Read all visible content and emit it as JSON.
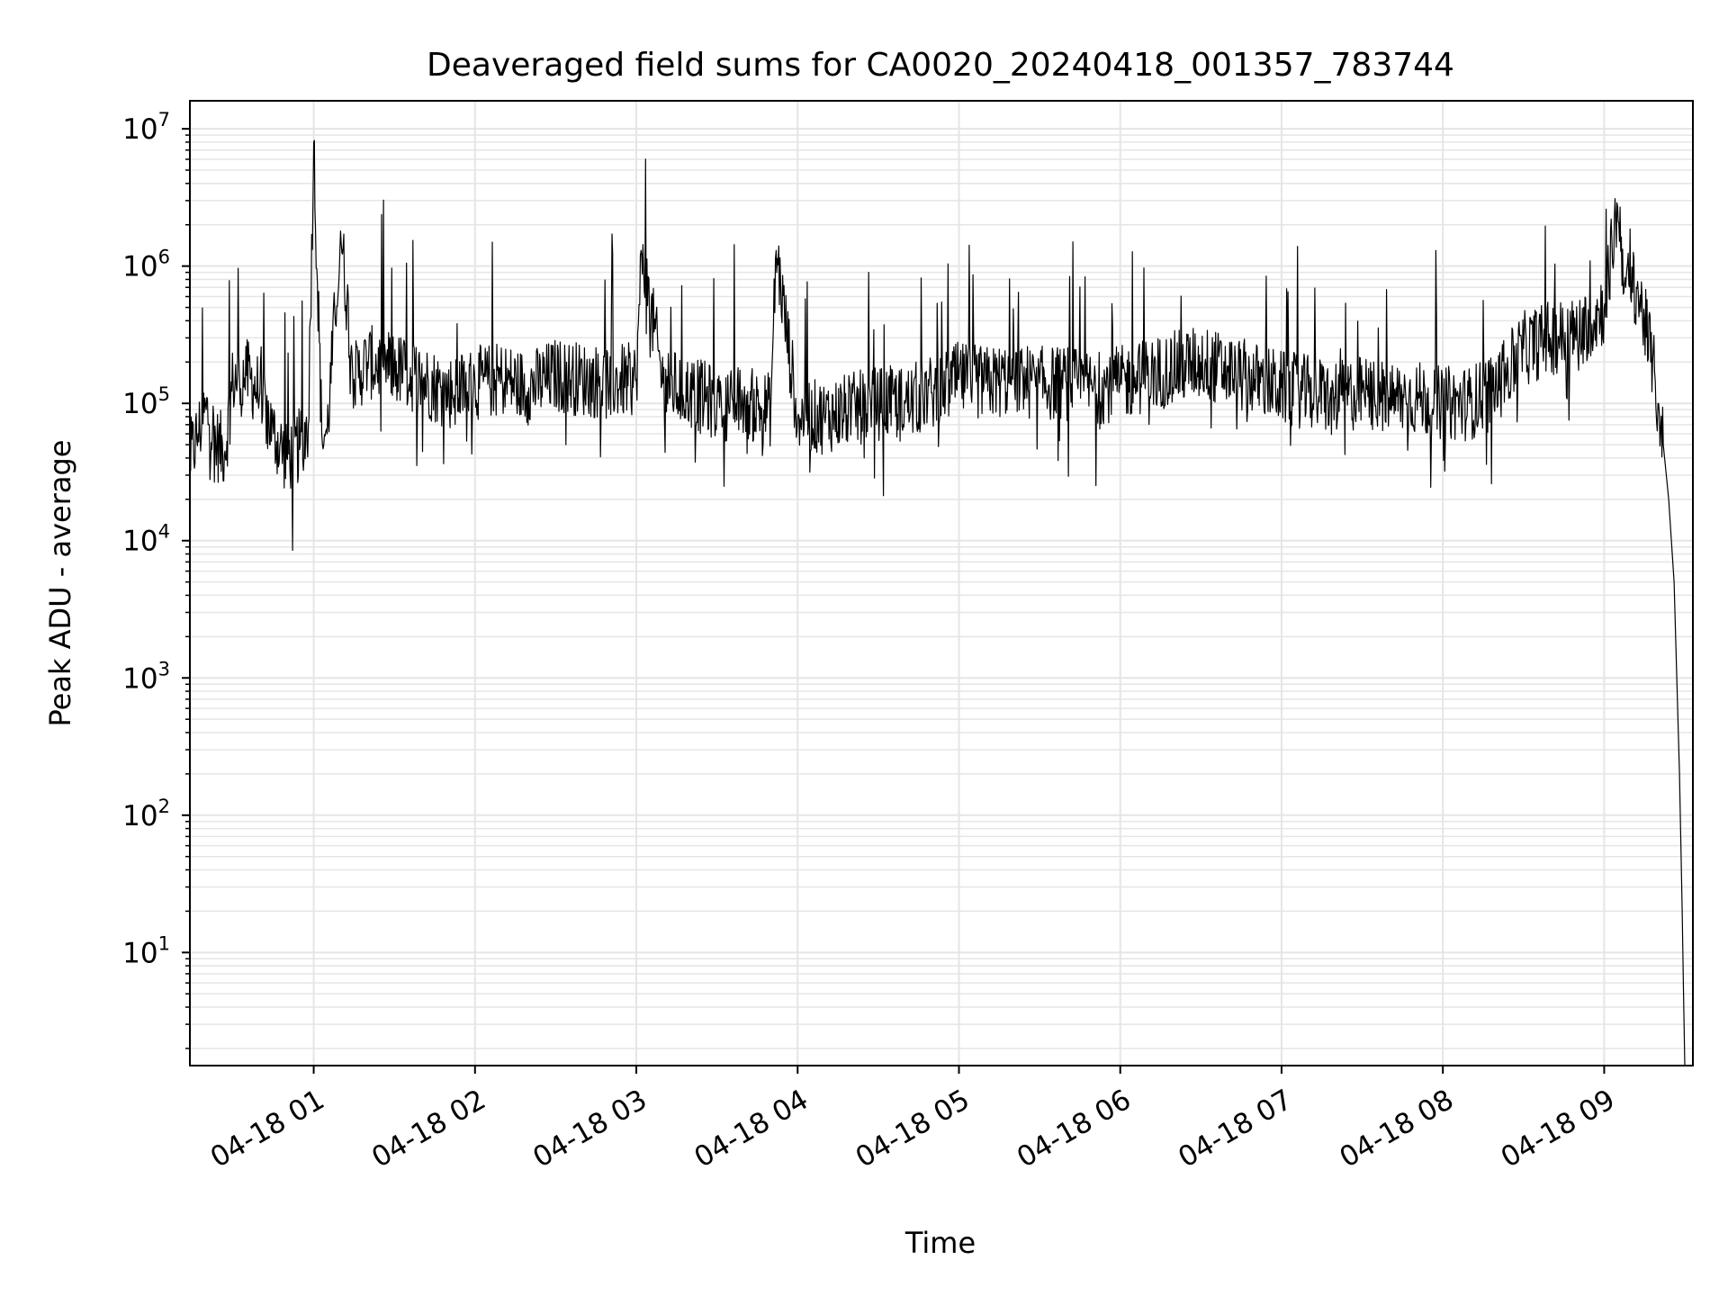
{
  "chart_data": {
    "type": "line",
    "title": "Deaveraged field sums for CA0020_20240418_001357_783744",
    "xlabel": "Time",
    "ylabel": "Peak ADU - average",
    "x_scale": "time",
    "y_scale": "log",
    "xlim": [
      "2024-04-18 00:13:57",
      "2024-04-18 09:33:00"
    ],
    "ylim": [
      1.5,
      16000000
    ],
    "x_ticks": [
      {
        "value": "2024-04-18 01:00",
        "label": "04-18 01"
      },
      {
        "value": "2024-04-18 02:00",
        "label": "04-18 02"
      },
      {
        "value": "2024-04-18 03:00",
        "label": "04-18 03"
      },
      {
        "value": "2024-04-18 04:00",
        "label": "04-18 04"
      },
      {
        "value": "2024-04-18 05:00",
        "label": "04-18 05"
      },
      {
        "value": "2024-04-18 06:00",
        "label": "04-18 06"
      },
      {
        "value": "2024-04-18 07:00",
        "label": "04-18 07"
      },
      {
        "value": "2024-04-18 08:00",
        "label": "04-18 08"
      },
      {
        "value": "2024-04-18 09:00",
        "label": "04-18 09"
      }
    ],
    "y_ticks": [
      {
        "value": 10,
        "base": "10",
        "exp": "1"
      },
      {
        "value": 100,
        "base": "10",
        "exp": "2"
      },
      {
        "value": 1000,
        "base": "10",
        "exp": "3"
      },
      {
        "value": 10000,
        "base": "10",
        "exp": "4"
      },
      {
        "value": 100000,
        "base": "10",
        "exp": "5"
      },
      {
        "value": 1000000,
        "base": "10",
        "exp": "6"
      },
      {
        "value": 10000000,
        "base": "10",
        "exp": "7"
      }
    ],
    "grid": true,
    "line_color": "#000000",
    "grid_color": "#e5e5e5",
    "series": [
      {
        "x": [
          "2024-04-18 00:14",
          "2024-04-18 00:17",
          "2024-04-18 00:20",
          "2024-04-18 00:24",
          "2024-04-18 00:27",
          "2024-04-18 00:30",
          "2024-04-18 00:35",
          "2024-04-18 00:40",
          "2024-04-18 00:45",
          "2024-04-18 00:50",
          "2024-04-18 00:55",
          "2024-04-18 00:58",
          "2024-04-18 01:00",
          "2024-04-18 01:03",
          "2024-04-18 01:05",
          "2024-04-18 01:10",
          "2024-04-18 01:15",
          "2024-04-18 01:20",
          "2024-04-18 01:30",
          "2024-04-18 01:40",
          "2024-04-18 01:50",
          "2024-04-18 02:00",
          "2024-04-18 02:10",
          "2024-04-18 02:20",
          "2024-04-18 02:30",
          "2024-04-18 02:40",
          "2024-04-18 02:50",
          "2024-04-18 03:00",
          "2024-04-18 03:02",
          "2024-04-18 03:10",
          "2024-04-18 03:20",
          "2024-04-18 03:30",
          "2024-04-18 03:40",
          "2024-04-18 03:50",
          "2024-04-18 03:52",
          "2024-04-18 04:00",
          "2024-04-18 04:10",
          "2024-04-18 04:20",
          "2024-04-18 04:30",
          "2024-04-18 04:40",
          "2024-04-18 04:50",
          "2024-04-18 05:00",
          "2024-04-18 05:10",
          "2024-04-18 05:20",
          "2024-04-18 05:30",
          "2024-04-18 05:40",
          "2024-04-18 05:50",
          "2024-04-18 06:00",
          "2024-04-18 06:10",
          "2024-04-18 06:20",
          "2024-04-18 06:30",
          "2024-04-18 06:40",
          "2024-04-18 06:50",
          "2024-04-18 07:00",
          "2024-04-18 07:10",
          "2024-04-18 07:20",
          "2024-04-18 07:30",
          "2024-04-18 07:40",
          "2024-04-18 07:50",
          "2024-04-18 08:00",
          "2024-04-18 08:10",
          "2024-04-18 08:20",
          "2024-04-18 08:30",
          "2024-04-18 08:40",
          "2024-04-18 08:50",
          "2024-04-18 09:00",
          "2024-04-18 09:05",
          "2024-04-18 09:08",
          "2024-04-18 09:12",
          "2024-04-18 09:15",
          "2024-04-18 09:18",
          "2024-04-18 09:20",
          "2024-04-18 09:22",
          "2024-04-18 09:24",
          "2024-04-18 09:26",
          "2024-04-18 09:27",
          "2024-04-18 09:28",
          "2024-04-18 09:29",
          "2024-04-18 09:30",
          "2024-04-18 09:31",
          "2024-04-18 09:32"
        ],
        "y": [
          40000,
          60000,
          90000,
          50000,
          45000,
          150000,
          160000,
          120000,
          60000,
          40000,
          50000,
          70000,
          8000000,
          60000,
          60000,
          1800000,
          150000,
          200000,
          180000,
          150000,
          120000,
          140000,
          150000,
          130000,
          160000,
          150000,
          140000,
          150000,
          1200000,
          140000,
          120000,
          100000,
          100000,
          90000,
          1300000,
          80000,
          80000,
          90000,
          100000,
          100000,
          120000,
          150000,
          140000,
          150000,
          140000,
          140000,
          130000,
          140000,
          160000,
          180000,
          200000,
          170000,
          150000,
          130000,
          120000,
          110000,
          120000,
          110000,
          110000,
          100000,
          100000,
          130000,
          250000,
          300000,
          320000,
          500000,
          2700000,
          700000,
          700000,
          400000,
          200000,
          100000,
          50000,
          20000,
          5000,
          1000,
          200,
          20,
          1.5,
          1.5,
          1.5
        ]
      }
    ]
  }
}
